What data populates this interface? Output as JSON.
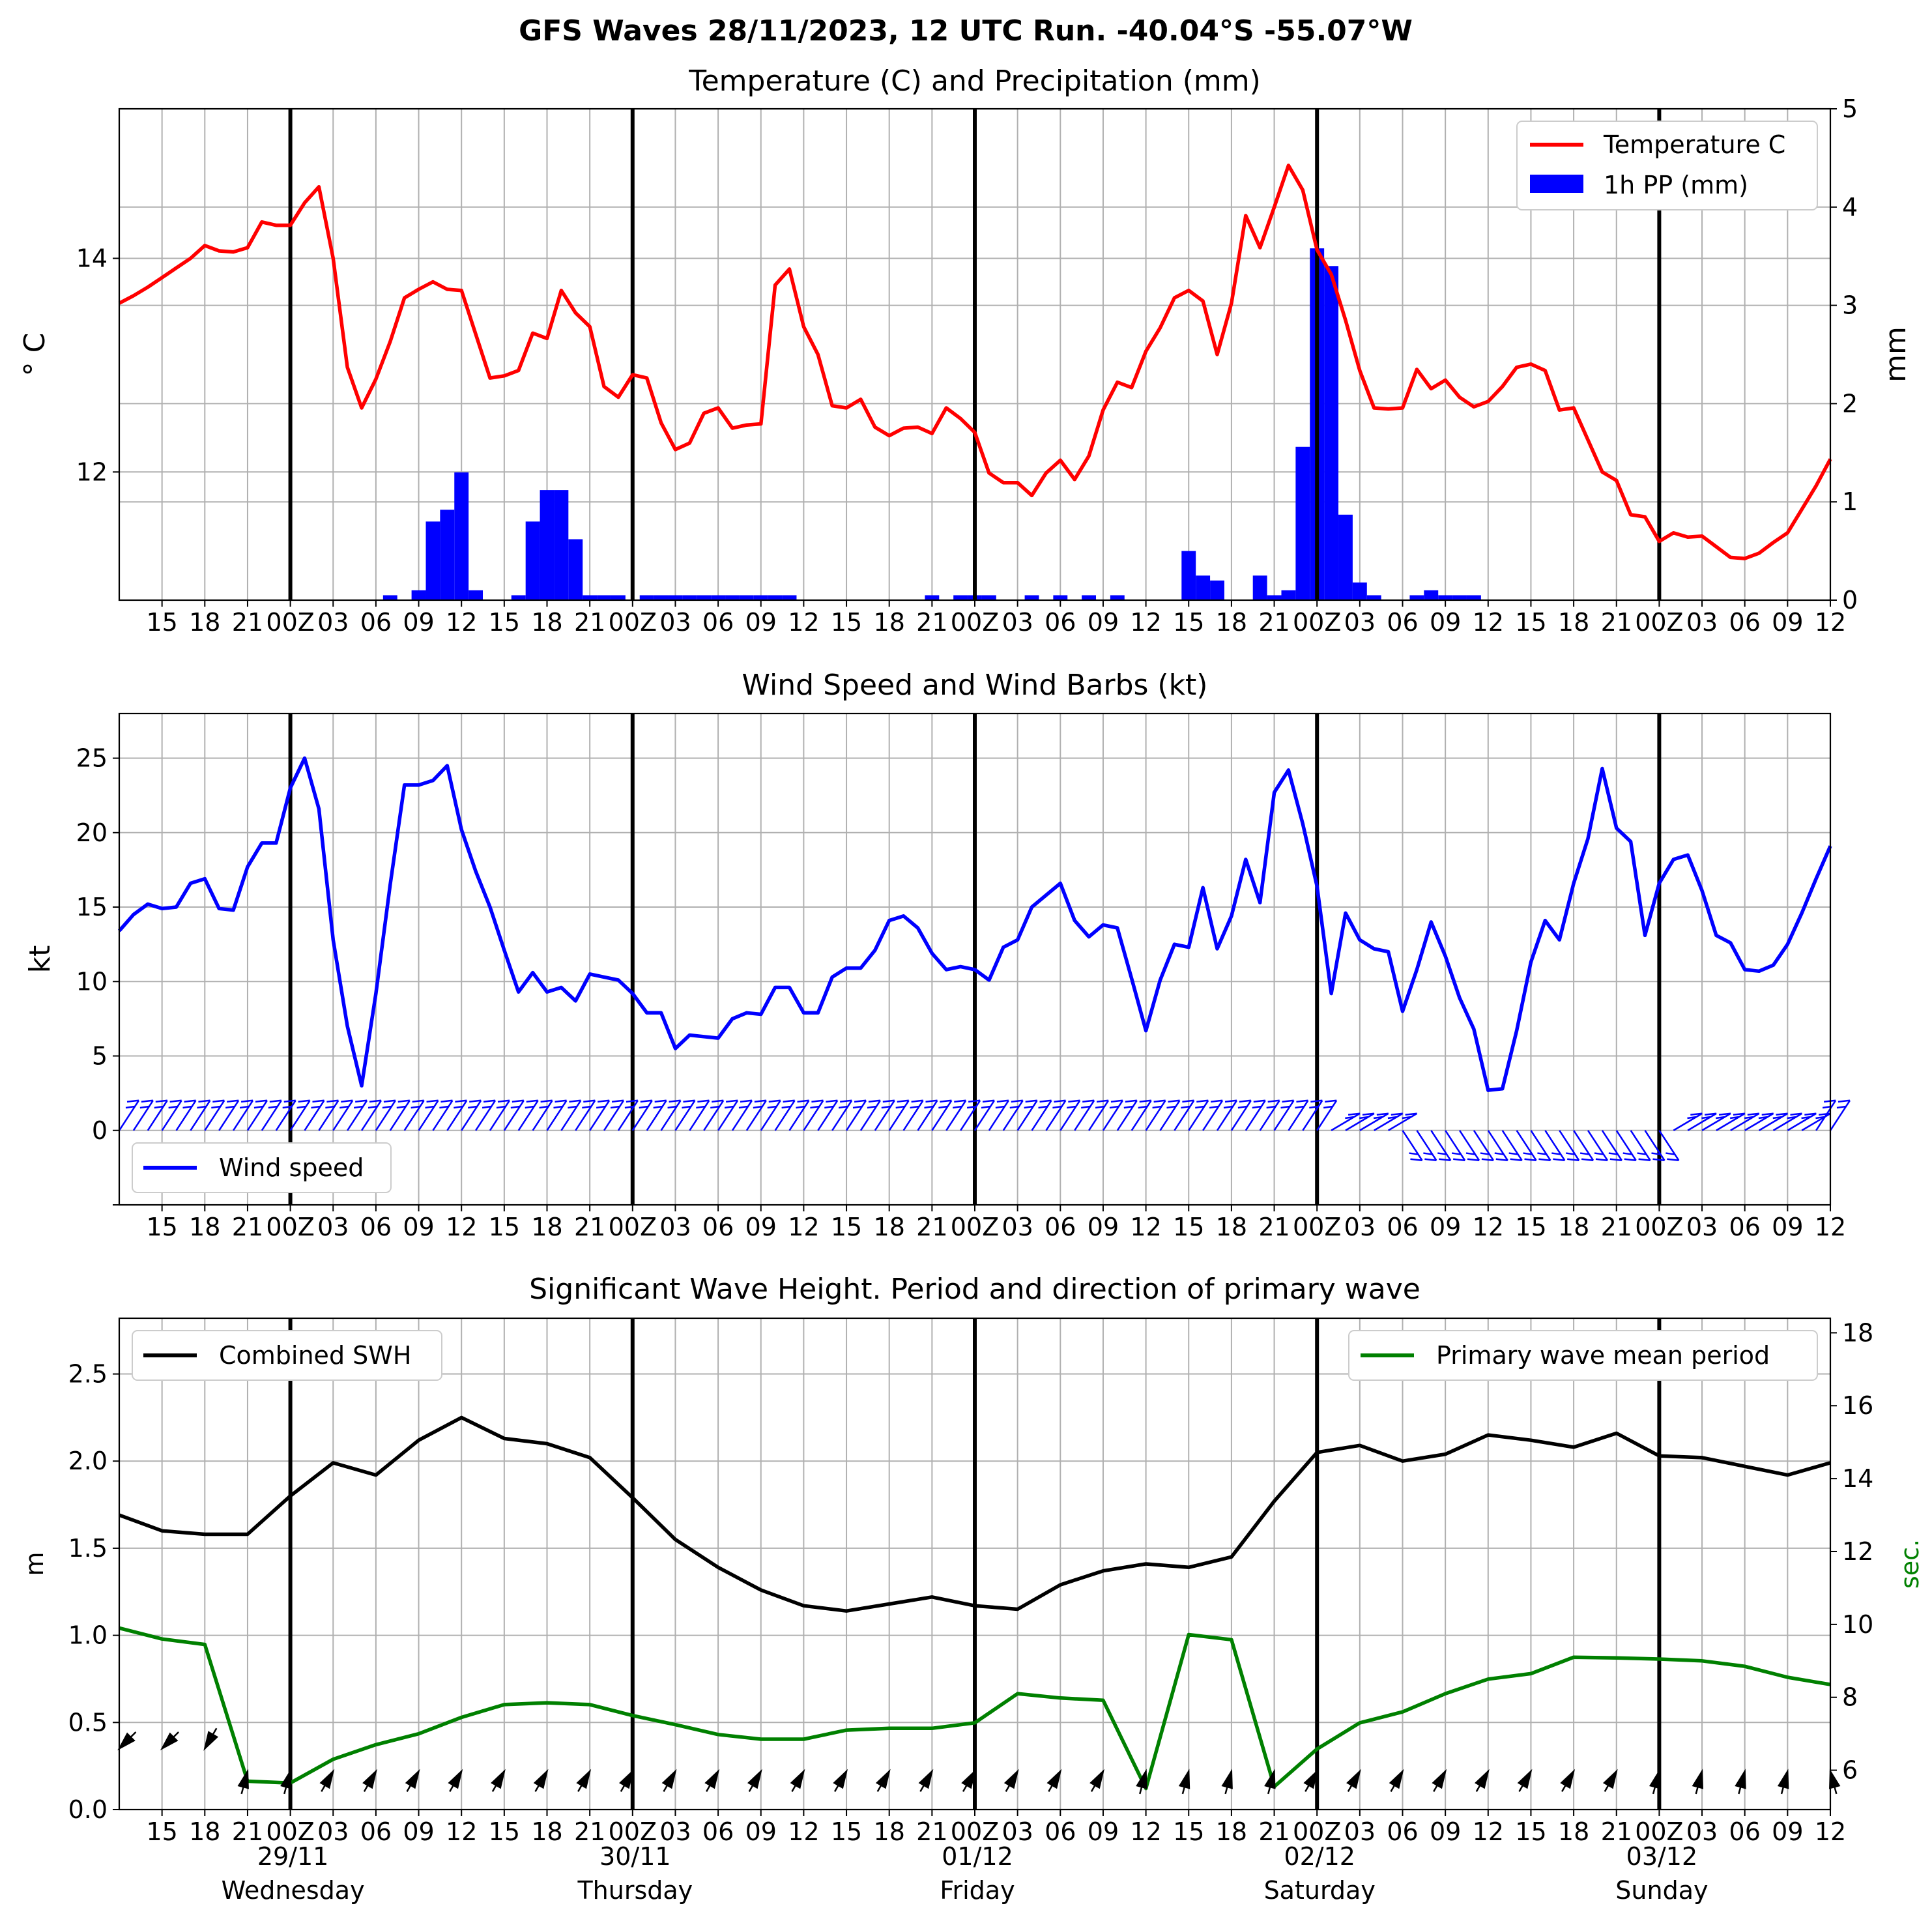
{
  "title": "GFS Waves 28/11/2023, 12 UTC Run. -40.04°S -55.07°W",
  "colors": {
    "temperature": "#ff0000",
    "precip": "#0000ff",
    "wind": "#0000ff",
    "swh": "#000000",
    "period": "#008000",
    "grid": "#b0b0b0",
    "day_line": "#000000"
  },
  "x_axis": {
    "tick_labels": [
      "15",
      "18",
      "21",
      "00Z",
      "03",
      "06",
      "09",
      "12",
      "15",
      "18",
      "21",
      "00Z",
      "03",
      "06",
      "09",
      "12",
      "15",
      "18",
      "21",
      "00Z",
      "03",
      "06",
      "09",
      "12",
      "15",
      "18",
      "21",
      "00Z",
      "03",
      "06",
      "09",
      "12",
      "15",
      "18",
      "21",
      "00Z",
      "03",
      "06",
      "09",
      "12"
    ],
    "day_labels": [
      {
        "date": "29/11",
        "day": "Wednesday"
      },
      {
        "date": "30/11",
        "day": "Thursday"
      },
      {
        "date": "01/12",
        "day": "Friday"
      },
      {
        "date": "02/12",
        "day": "Saturday"
      },
      {
        "date": "03/12",
        "day": "Sunday"
      }
    ]
  },
  "chart_data": [
    {
      "type": "line",
      "title": "Temperature (C) and Precipitation (mm)",
      "ylabel": "° C",
      "ylabel_right": "mm",
      "ylim": [
        10.8,
        15.4
      ],
      "yticks": [
        "12",
        "14"
      ],
      "ylim_right": [
        0,
        5
      ],
      "yticks_right": [
        "0",
        "1",
        "2",
        "3",
        "4",
        "5"
      ],
      "x_unit": "hours since 28/11 12Z",
      "xlim": [
        0,
        120
      ],
      "grid": true,
      "legend": "top-right",
      "series": [
        {
          "name": "Temperature C",
          "type": "line",
          "x": [
            0,
            1,
            2,
            3,
            4,
            5,
            6,
            7,
            8,
            9,
            10,
            11,
            12,
            13,
            14,
            15,
            16,
            17,
            18,
            19,
            20,
            21,
            22,
            23,
            24,
            25,
            26,
            27,
            28,
            29,
            30,
            31,
            32,
            33,
            34,
            35,
            36,
            37,
            38,
            39,
            40,
            41,
            42,
            43,
            44,
            45,
            46,
            47,
            48,
            49,
            50,
            51,
            52,
            53,
            54,
            55,
            56,
            57,
            58,
            59,
            60,
            61,
            62,
            63,
            64,
            65,
            66,
            67,
            68,
            69,
            70,
            71,
            72,
            73,
            74,
            75,
            76,
            77,
            78,
            79,
            80,
            81,
            82,
            83,
            84,
            85,
            86,
            87,
            88,
            89,
            90,
            91,
            92,
            93,
            94,
            95,
            96,
            97,
            98,
            99,
            100,
            101,
            102,
            103,
            104,
            105,
            106,
            107,
            108,
            109,
            110,
            111,
            112,
            113,
            114,
            115,
            116,
            117,
            118,
            119,
            120
          ],
          "values": [
            13.58,
            13.65,
            13.73,
            13.82,
            13.91,
            14.0,
            14.12,
            14.07,
            14.06,
            14.1,
            14.34,
            14.31,
            14.31,
            14.52,
            14.67,
            14.0,
            12.98,
            12.6,
            12.87,
            13.22,
            13.63,
            13.71,
            13.78,
            13.71,
            13.7,
            13.29,
            12.88,
            12.9,
            12.95,
            13.3,
            13.25,
            13.7,
            13.49,
            13.36,
            12.8,
            12.7,
            12.91,
            12.88,
            12.46,
            12.21,
            12.27,
            12.55,
            12.6,
            12.41,
            12.44,
            12.45,
            13.75,
            13.9,
            13.36,
            13.1,
            12.62,
            12.6,
            12.68,
            12.42,
            12.34,
            12.41,
            12.42,
            12.36,
            12.6,
            12.5,
            12.37,
            11.99,
            11.9,
            11.9,
            11.78,
            11.99,
            12.11,
            11.93,
            12.15,
            12.58,
            12.84,
            12.79,
            13.13,
            13.35,
            13.63,
            13.7,
            13.6,
            13.1,
            13.58,
            14.4,
            14.1,
            14.48,
            14.87,
            14.64,
            14.08,
            13.85,
            13.42,
            12.95,
            12.6,
            12.59,
            12.6,
            12.96,
            12.78,
            12.86,
            12.7,
            12.61,
            12.66,
            12.8,
            12.98,
            13.01,
            12.95,
            12.58,
            12.6,
            12.3,
            12.0,
            11.92,
            11.6,
            11.58,
            11.35,
            11.43,
            11.39,
            11.4,
            11.3,
            11.2,
            11.19,
            11.24,
            11.34,
            11.43,
            11.65,
            11.87,
            12.12
          ]
        },
        {
          "name": "1h PP (mm)",
          "type": "bar",
          "axis": "right",
          "x": [
            19,
            21,
            22,
            23,
            24,
            25,
            28,
            29,
            30,
            31,
            32,
            33,
            34,
            35,
            37,
            38,
            39,
            40,
            41,
            42,
            43,
            44,
            45,
            46,
            47,
            57,
            59,
            60,
            61,
            64,
            66,
            68,
            70,
            75,
            76,
            77,
            80,
            81,
            82,
            83,
            84,
            85,
            86,
            87,
            88,
            91,
            92,
            93,
            94,
            95
          ],
          "values": [
            0.05,
            0.1,
            0.8,
            0.92,
            1.3,
            0.1,
            0.05,
            0.8,
            1.12,
            1.12,
            0.62,
            0.05,
            0.05,
            0.05,
            0.05,
            0.05,
            0.05,
            0.05,
            0.05,
            0.05,
            0.05,
            0.05,
            0.05,
            0.05,
            0.05,
            0.05,
            0.05,
            0.05,
            0.05,
            0.05,
            0.05,
            0.05,
            0.05,
            0.5,
            0.25,
            0.2,
            0.25,
            0.05,
            0.1,
            1.56,
            3.58,
            3.4,
            0.87,
            0.18,
            0.05,
            0.05,
            0.1,
            0.05,
            0.05,
            0.05
          ]
        }
      ]
    },
    {
      "type": "line",
      "title": "Wind Speed and Wind Barbs (kt)",
      "ylabel": "kt",
      "ylim": [
        -5,
        28
      ],
      "yticks": [
        "0",
        "5",
        "10",
        "15",
        "20",
        "25"
      ],
      "x_unit": "hours since 28/11 12Z",
      "xlim": [
        0,
        120
      ],
      "grid": true,
      "legend": "bottom-left",
      "series": [
        {
          "name": "Wind speed",
          "x": [
            0,
            1,
            2,
            3,
            4,
            5,
            6,
            7,
            8,
            9,
            10,
            11,
            12,
            13,
            14,
            15,
            16,
            17,
            18,
            19,
            20,
            21,
            22,
            23,
            24,
            25,
            26,
            27,
            28,
            29,
            30,
            31,
            32,
            33,
            34,
            35,
            36,
            37,
            38,
            39,
            40,
            41,
            42,
            43,
            44,
            45,
            46,
            47,
            48,
            49,
            50,
            51,
            52,
            53,
            54,
            55,
            56,
            57,
            58,
            59,
            60,
            61,
            62,
            63,
            64,
            65,
            66,
            67,
            68,
            69,
            70,
            71,
            72,
            73,
            74,
            75,
            76,
            77,
            78,
            79,
            80,
            81,
            82,
            83,
            84,
            85,
            86,
            87,
            88,
            89,
            90,
            91,
            92,
            93,
            94,
            95,
            96,
            97,
            98,
            99,
            100,
            101,
            102,
            103,
            104,
            105,
            106,
            107,
            108,
            109,
            110,
            111,
            112,
            113,
            114,
            115,
            116,
            117,
            118,
            119,
            120
          ],
          "values": [
            13.4,
            14.5,
            15.2,
            14.9,
            15.0,
            16.6,
            16.9,
            14.9,
            14.8,
            17.7,
            19.3,
            19.3,
            23.0,
            25.0,
            21.6,
            12.8,
            7.0,
            3.0,
            9.2,
            16.5,
            23.2,
            23.2,
            23.5,
            24.5,
            20.2,
            17.4,
            15.0,
            12.1,
            9.3,
            10.6,
            9.3,
            9.6,
            8.7,
            10.5,
            10.3,
            10.1,
            9.2,
            7.9,
            7.9,
            5.5,
            6.4,
            6.3,
            6.2,
            7.5,
            7.9,
            7.8,
            9.6,
            9.6,
            7.9,
            7.9,
            10.3,
            10.9,
            10.9,
            12.1,
            14.1,
            14.4,
            13.6,
            11.9,
            10.8,
            11.0,
            10.8,
            10.1,
            12.3,
            12.8,
            15.0,
            15.8,
            16.6,
            14.1,
            13.0,
            13.8,
            13.6,
            10.2,
            6.7,
            10.1,
            12.5,
            12.3,
            16.3,
            12.2,
            14.4,
            18.2,
            15.3,
            22.7,
            24.2,
            20.6,
            16.4,
            9.2,
            14.6,
            12.8,
            12.2,
            12.0,
            8.0,
            10.8,
            14.0,
            11.7,
            8.9,
            6.8,
            2.7,
            2.8,
            6.7,
            11.3,
            14.1,
            12.8,
            16.6,
            19.6,
            24.3,
            20.3,
            19.4,
            13.1,
            16.6,
            18.2,
            18.5,
            16.1,
            13.1,
            12.6,
            10.8,
            10.7,
            11.1,
            12.5,
            14.6,
            16.9,
            19.1
          ]
        }
      ]
    },
    {
      "type": "line",
      "title": "Significant Wave Height. Period and direction of primary wave",
      "ylabel": "m",
      "ylabel_right": "sec.",
      "ylim": [
        0,
        2.82
      ],
      "yticks": [
        "0.0",
        "0.5",
        "1.0",
        "1.5",
        "2.0",
        "2.5"
      ],
      "ylim_right": [
        4.92,
        18.4
      ],
      "yticks_right": [
        "6",
        "8",
        "10",
        "12",
        "14",
        "16",
        "18"
      ],
      "x_unit": "hours since 28/11 12Z",
      "xlim": [
        0,
        120
      ],
      "grid": true,
      "series": [
        {
          "name": "Combined SWH",
          "axis": "left",
          "x": [
            0,
            3,
            6,
            9,
            12,
            15,
            18,
            21,
            24,
            27,
            30,
            33,
            36,
            39,
            42,
            45,
            48,
            51,
            54,
            57,
            60,
            63,
            66,
            69,
            72,
            75,
            78,
            81,
            84,
            87,
            90,
            93,
            96,
            99,
            102,
            105,
            108,
            111,
            114,
            117,
            120
          ],
          "values": [
            1.69,
            1.6,
            1.58,
            1.58,
            1.8,
            1.99,
            1.92,
            2.12,
            2.25,
            2.13,
            2.1,
            2.02,
            1.79,
            1.55,
            1.39,
            1.26,
            1.17,
            1.14,
            1.18,
            1.22,
            1.17,
            1.15,
            1.29,
            1.37,
            1.41,
            1.39,
            1.45,
            1.77,
            2.05,
            2.09,
            2.0,
            2.04,
            2.15,
            2.12,
            2.08,
            2.16,
            2.03,
            2.02,
            1.97,
            1.92,
            1.99
          ]
        },
        {
          "name": "Primary wave mean period",
          "axis": "right",
          "x": [
            0,
            3,
            6,
            9,
            12,
            15,
            18,
            21,
            24,
            27,
            30,
            33,
            36,
            39,
            42,
            45,
            48,
            51,
            54,
            57,
            60,
            63,
            66,
            69,
            72,
            75,
            78,
            81,
            84,
            87,
            90,
            93,
            96,
            99,
            102,
            105,
            108,
            111,
            114,
            117,
            120
          ],
          "values": [
            9.9,
            9.6,
            9.45,
            5.7,
            5.65,
            6.3,
            6.7,
            7.0,
            7.45,
            7.8,
            7.85,
            7.8,
            7.5,
            7.25,
            6.98,
            6.85,
            6.85,
            7.1,
            7.15,
            7.15,
            7.3,
            8.1,
            7.98,
            7.92,
            5.5,
            9.72,
            9.58,
            5.55,
            6.58,
            7.3,
            7.6,
            8.1,
            8.5,
            8.65,
            9.1,
            9.08,
            9.05,
            9.0,
            8.85,
            8.55,
            8.35
          ]
        },
        {
          "name": "Primary wave direction",
          "axis": "arrows",
          "x": [
            0,
            3,
            6,
            9,
            12,
            15,
            18,
            21,
            24,
            27,
            30,
            33,
            36,
            39,
            42,
            45,
            48,
            51,
            54,
            57,
            60,
            63,
            66,
            69,
            72,
            75,
            78,
            81,
            84,
            87,
            90,
            93,
            96,
            99,
            102,
            105,
            108,
            111,
            114,
            117,
            120
          ],
          "direction_deg": [
            225,
            225,
            240,
            75,
            75,
            60,
            60,
            60,
            60,
            60,
            60,
            60,
            60,
            60,
            60,
            60,
            60,
            60,
            60,
            60,
            60,
            60,
            60,
            60,
            75,
            75,
            75,
            75,
            60,
            60,
            60,
            60,
            60,
            60,
            60,
            60,
            75,
            75,
            75,
            75,
            105
          ]
        }
      ]
    }
  ]
}
